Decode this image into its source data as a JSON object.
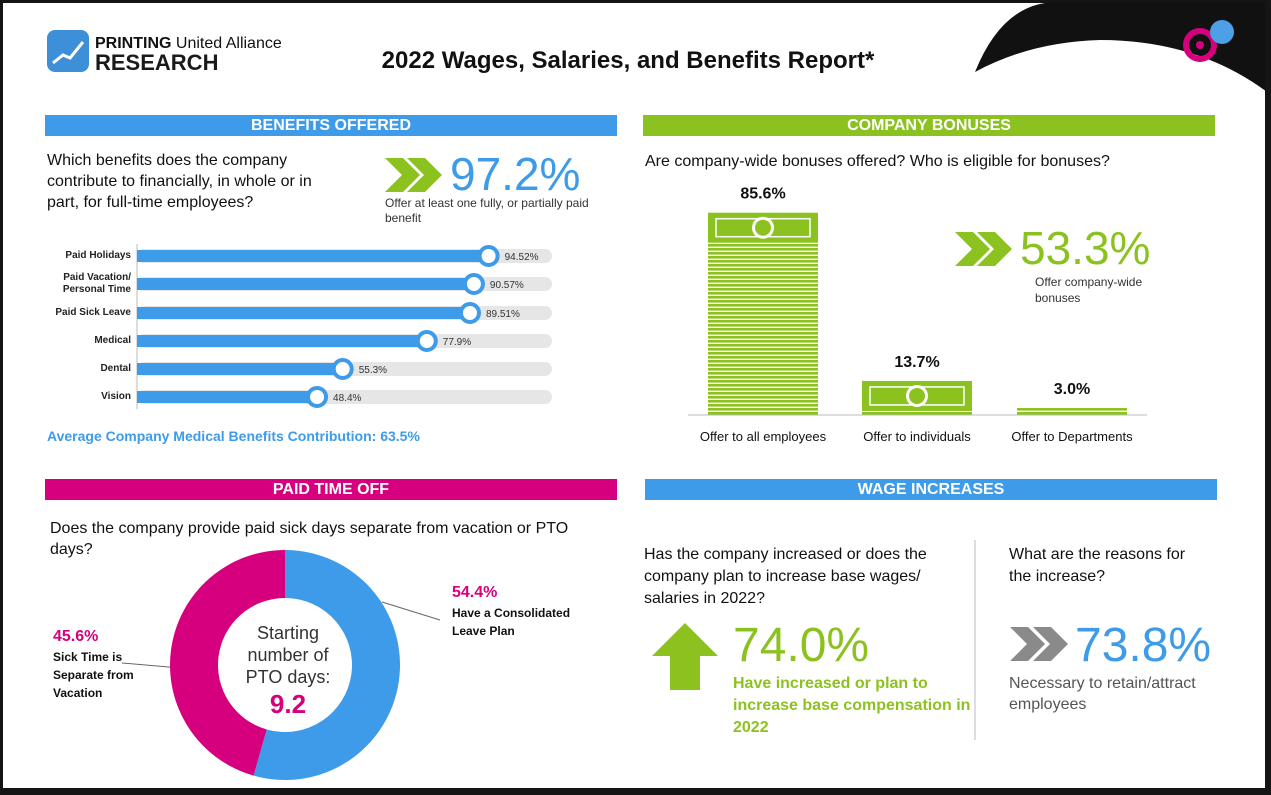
{
  "header": {
    "brand_bold": "PRINTING",
    "brand": "United Alliance",
    "brand_sub": "RESEARCH",
    "title": "2022 Wages, Salaries, and Benefits Report*"
  },
  "chart_data": [
    {
      "type": "hbar",
      "title": "BENEFITS OFFERED",
      "question": "Which benefits does the company contribute to financially, in whole or in part, for full-time employees?",
      "stat": "97.2%",
      "stat_text": "Offer at least one fully, or partially paid benefit",
      "categories": [
        "Paid Holidays",
        "Paid Vacation/ Personal Time",
        "Paid Sick Leave",
        "Medical",
        "Dental",
        "Vision"
      ],
      "values": [
        94.52,
        90.57,
        89.51,
        77.9,
        55.3,
        48.4
      ],
      "value_labels": [
        "94.52%",
        "90.57%",
        "89.51%",
        "77.9%",
        "55.3%",
        "48.4%"
      ],
      "xlim": [
        0,
        100
      ],
      "color": "#3d9be9",
      "footnote": "Average Company Medical Benefits Contribution: 63.5%"
    },
    {
      "type": "bar",
      "title": "COMPANY BONUSES",
      "question": "Are company-wide bonuses offered? Who is eligible for bonuses?",
      "stat": "53.3%",
      "stat_text": "Offer company-wide bonuses",
      "categories": [
        "Offer to all employees",
        "Offer to individuals",
        "Offer to Departments"
      ],
      "values": [
        85.6,
        13.7,
        3.0
      ],
      "value_labels": [
        "85.6%",
        "13.7%",
        "3.0%"
      ],
      "ylim": [
        0,
        100
      ],
      "color": "#8cc21f"
    },
    {
      "type": "pie",
      "title": "PAID TIME OFF",
      "question": "Does the company provide paid sick days separate from vacation or PTO days?",
      "categories": [
        "Have a Consolidated Leave Plan",
        "Sick Time is Separate from Vacation"
      ],
      "values": [
        54.4,
        45.6
      ],
      "value_labels": [
        "54.4%",
        "45.6%"
      ],
      "colors": [
        "#3d9be9",
        "#d6007e"
      ],
      "center_text": "Starting number of PTO days:",
      "center_value": 9.2
    }
  ],
  "wage_increases": {
    "title": "WAGE INCREASES",
    "question": "Has the company increased or does the company plan to increase base wages/ salaries in 2022?",
    "stat": "74.0%",
    "stat_text": "Have increased or plan to increase base compensation in 2022",
    "reasons_question": "What are the reasons for the increase?",
    "reasons_stat": "73.8%",
    "reasons_text": "Necessary to retain/attract employees"
  }
}
